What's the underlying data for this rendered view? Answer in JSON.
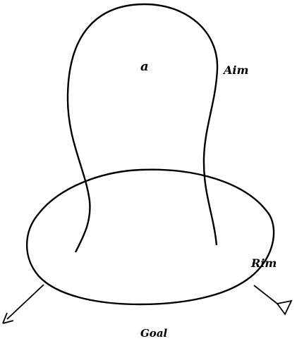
{
  "labels": {
    "a": "a",
    "aim": "Aim",
    "rim": "Rim",
    "goal": "Goal"
  },
  "colors": {
    "stroke": "#000000",
    "background": "#ffffff"
  }
}
